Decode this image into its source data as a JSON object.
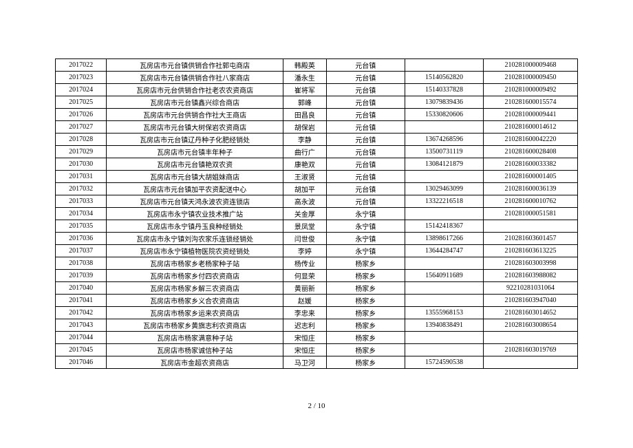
{
  "table": {
    "columns": [
      "id",
      "name",
      "person",
      "town",
      "phone",
      "code"
    ],
    "rows": [
      [
        "2017022",
        "瓦房店市元台镇供销合作社郭屯商店",
        "韩殿英",
        "元台镇",
        "",
        "210281000009468"
      ],
      [
        "2017023",
        "瓦房店市元台镇供销合作社八家商店",
        "潘永生",
        "元台镇",
        "15140562820",
        "210281000009450"
      ],
      [
        "2017024",
        "瓦房店市元台供销合作社老农农资商店",
        "崔将军",
        "元台镇",
        "15140337828",
        "210281000009492"
      ],
      [
        "2017025",
        "瓦房店市元台镇鑫兴综合商店",
        "郭峰",
        "元台镇",
        "13079839436",
        "210281600015574"
      ],
      [
        "2017026",
        "瓦房店市元台供销合作社大王商店",
        "田昌良",
        "元台镇",
        "15330820606",
        "210281000009441"
      ],
      [
        "2017027",
        "瓦房店市元台镇大树保岩农资商店",
        "胡保岩",
        "元台镇",
        "",
        "210281600014612"
      ],
      [
        "2017028",
        "瓦房店市元台镇辽丹种子化肥经销处",
        "李静",
        "元台镇",
        "13674268596",
        "210281600042220"
      ],
      [
        "2017029",
        "瓦房店市元台镇丰年种子",
        "曲行广",
        "元台镇",
        "13500731119",
        "210281600028408"
      ],
      [
        "2017030",
        "瓦房店市元台镇艳双农资",
        "康艳双",
        "元台镇",
        "13084121879",
        "210281600033382"
      ],
      [
        "2017031",
        "瓦房店市元台镇大胡姐妹商店",
        "王淑贤",
        "元台镇",
        "",
        "210281600001405"
      ],
      [
        "2017032",
        "瓦房店市元台镇加平农资配送中心",
        "胡加平",
        "元台镇",
        "13029463099",
        "210281600036139"
      ],
      [
        "2017033",
        "瓦房店市元台镇天鸿永波农资连锁店",
        "高永波",
        "元台镇",
        "13322216518",
        "210281600010762"
      ],
      [
        "2017034",
        "瓦房店市永宁镇农业技术推广站",
        "关金厚",
        "永宁镇",
        "",
        "210281000051581"
      ],
      [
        "2017035",
        "瓦房店市永宁镇丹玉良种经销处",
        "景凤堂",
        "永宁镇",
        "15142418367",
        ""
      ],
      [
        "2017036",
        "瓦房店市永宁镇刘沟农家乐连锁经销处",
        "闫世俊",
        "永宁镇",
        "13898617266",
        "210281603601457"
      ],
      [
        "2017037",
        "瓦房店市永宁镇植物医院农资经销处",
        "李婷",
        "永宁镇",
        "13644284747",
        "210281603613225"
      ],
      [
        "2017038",
        "瓦房店市杨家乡老杨家种子站",
        "杨传业",
        "杨家乡",
        "",
        "210281603003998"
      ],
      [
        "2017039",
        "瓦房店市杨家乡付四农资商店",
        "何显荣",
        "杨家乡",
        "15640911689",
        "210281603988082"
      ],
      [
        "2017040",
        "瓦房店市杨家乡解三农资商店",
        "黄丽新",
        "杨家乡",
        "",
        "92210281031064"
      ],
      [
        "2017041",
        "瓦房店市杨家乡义合农资商店",
        "赵媛",
        "杨家乡",
        "",
        "210281603947040"
      ],
      [
        "2017042",
        "瓦房店市杨家乡运来农资商店",
        "李忠来",
        "杨家乡",
        "13555968153",
        "210281603014652"
      ],
      [
        "2017043",
        "瓦房店市杨家乡黄旗志利农资商店",
        "迟志利",
        "杨家乡",
        "13940838491",
        "210281603008654"
      ],
      [
        "2017044",
        "瓦房店市杨家满意种子站",
        "宋恒庄",
        "杨家乡",
        "",
        ""
      ],
      [
        "2017045",
        "瓦房店市杨家诚信种子站",
        "宋恒庄",
        "杨家乡",
        "",
        "210281603019769"
      ],
      [
        "2017046",
        "瓦房店市金超农资商店",
        "马卫河",
        "杨家乡",
        "15724590538",
        ""
      ]
    ]
  },
  "footer": {
    "page_label": "2 / 10"
  }
}
